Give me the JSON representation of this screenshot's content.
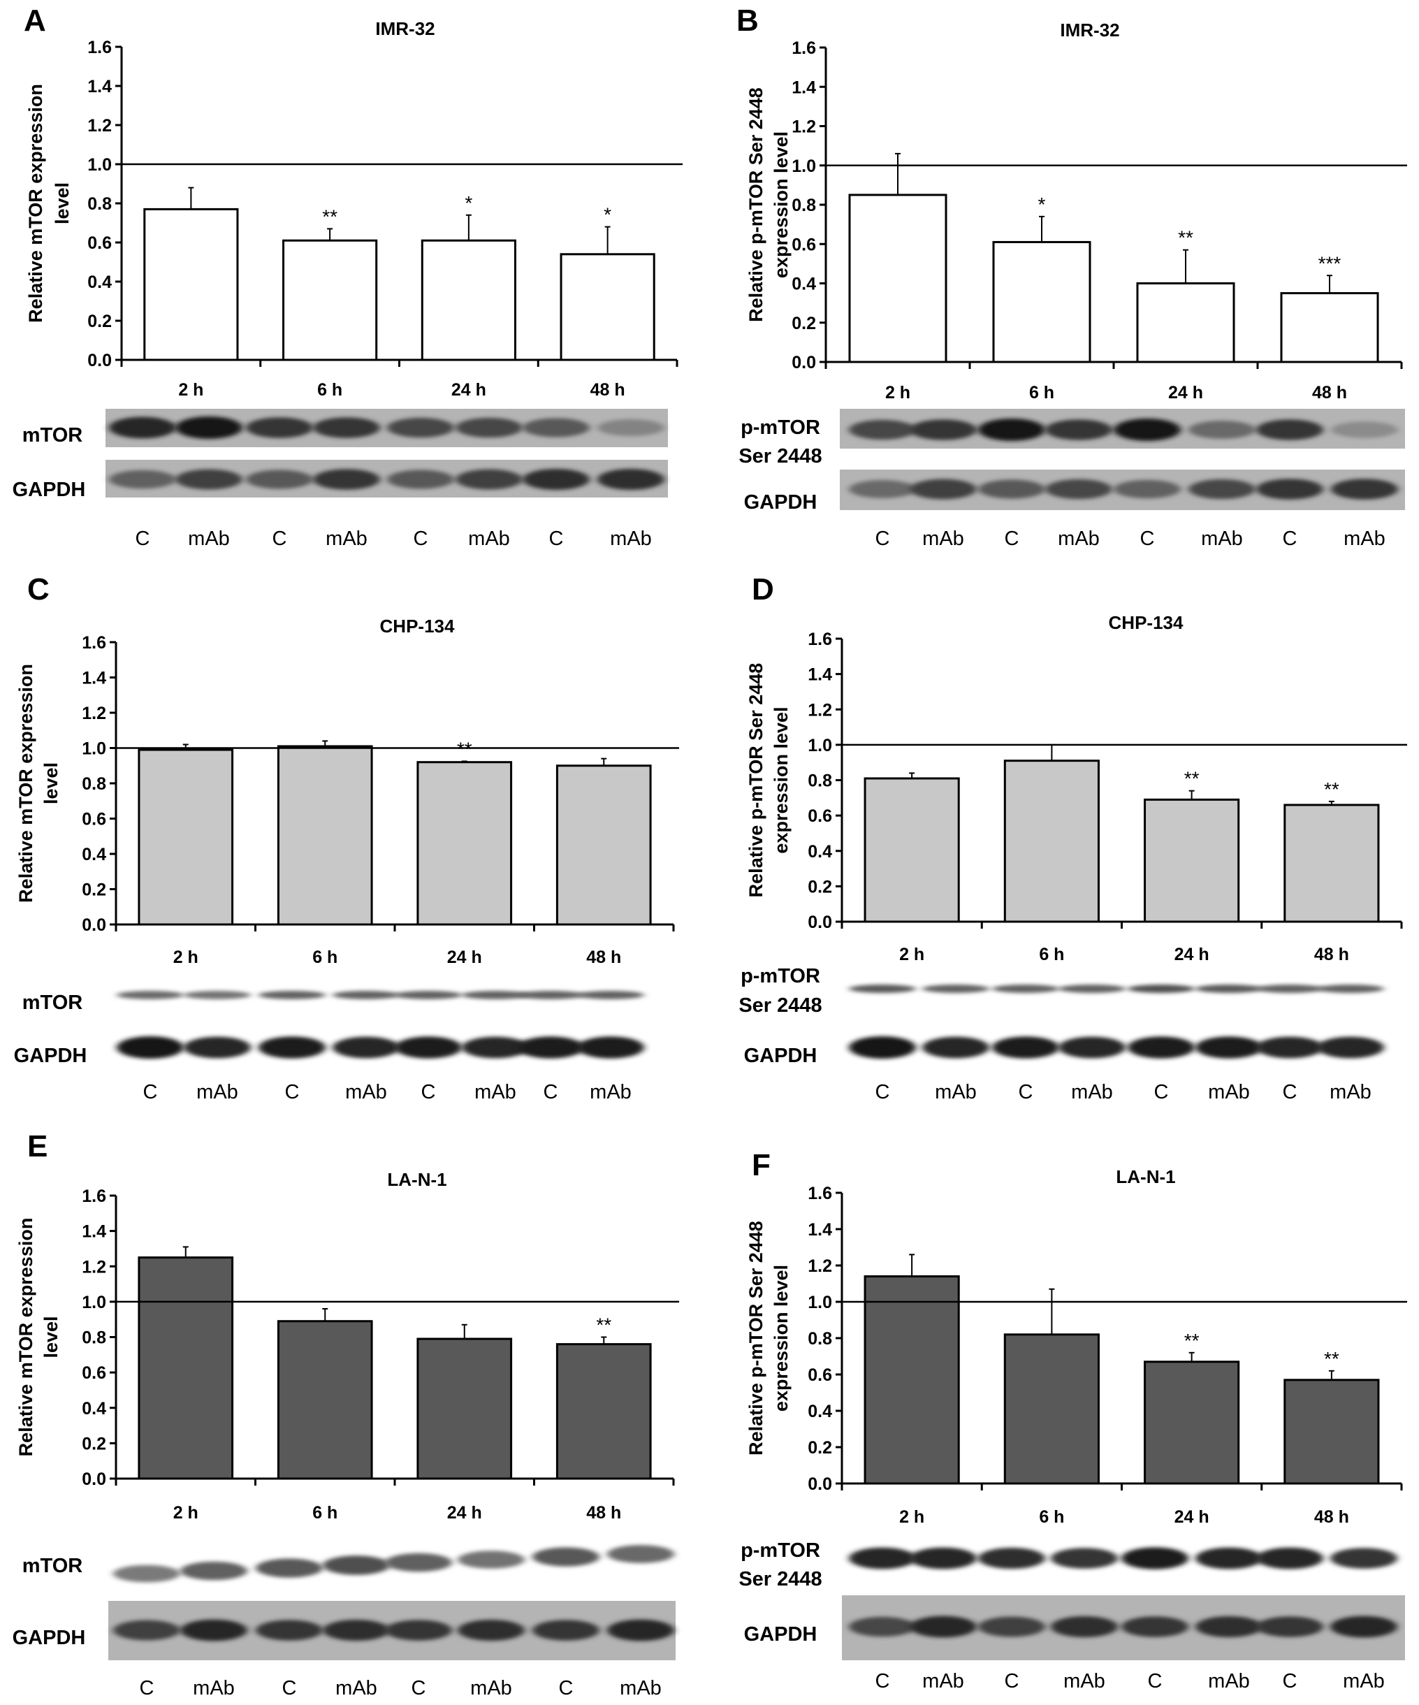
{
  "chart_data": [
    {
      "type": "bar",
      "panel": "A",
      "title": "IMR-32",
      "ylabel": [
        "Relative mTOR expression",
        "level"
      ],
      "categories": [
        "2 h",
        "6 h",
        "24 h",
        "48 h"
      ],
      "values": [
        0.77,
        0.61,
        0.61,
        0.54
      ],
      "errors": [
        0.11,
        0.06,
        0.13,
        0.14
      ],
      "significance": [
        "",
        "**",
        "*",
        "*"
      ],
      "ylim": [
        0,
        1.6
      ],
      "yticks": [
        "0.0",
        "0.2",
        "0.4",
        "0.6",
        "0.8",
        "1.0",
        "1.2",
        "1.4",
        "1.6"
      ],
      "reference_line": 1.0,
      "bar_color": "#ffffff",
      "blot": {
        "rows": [
          [
            "mTOR"
          ],
          [
            "GAPDH"
          ]
        ],
        "lanes": [
          "C",
          "mAb",
          "C",
          "mAb",
          "C",
          "mAb",
          "C",
          "mAb"
        ]
      }
    },
    {
      "type": "bar",
      "panel": "B",
      "title": "IMR-32",
      "ylabel": [
        "Relative p-mTOR Ser 2448",
        "expression level"
      ],
      "categories": [
        "2 h",
        "6 h",
        "24 h",
        "48 h"
      ],
      "values": [
        0.85,
        0.61,
        0.4,
        0.35
      ],
      "errors": [
        0.21,
        0.13,
        0.17,
        0.09
      ],
      "significance": [
        "",
        "*",
        "**",
        "***"
      ],
      "ylim": [
        0,
        1.6
      ],
      "yticks": [
        "0.0",
        "0.2",
        "0.4",
        "0.6",
        "0.8",
        "1.0",
        "1.2",
        "1.4",
        "1.6"
      ],
      "reference_line": 1.0,
      "bar_color": "#ffffff",
      "blot": {
        "rows": [
          [
            "p-mTOR",
            "Ser 2448"
          ],
          [
            "GAPDH"
          ]
        ],
        "lanes": [
          "C",
          "mAb",
          "C",
          "mAb",
          "C",
          "mAb",
          "C",
          "mAb"
        ]
      }
    },
    {
      "type": "bar",
      "panel": "C",
      "title": "CHP-134",
      "ylabel": [
        "Relative mTOR expression",
        "level"
      ],
      "categories": [
        "2 h",
        "6 h",
        "24 h",
        "48 h"
      ],
      "values": [
        0.99,
        1.01,
        0.92,
        0.9
      ],
      "errors": [
        0.03,
        0.03,
        0.005,
        0.04
      ],
      "significance": [
        "",
        "",
        "**",
        ""
      ],
      "ylim": [
        0,
        1.6
      ],
      "yticks": [
        "0.0",
        "0.2",
        "0.4",
        "0.6",
        "0.8",
        "1.0",
        "1.2",
        "1.4",
        "1.6"
      ],
      "reference_line": 1.0,
      "bar_color": "#c8c8c8",
      "blot": {
        "rows": [
          [
            "mTOR"
          ],
          [
            "GAPDH"
          ]
        ],
        "lanes": [
          "C",
          "mAb",
          "C",
          "mAb",
          "C",
          "mAb",
          "C",
          "mAb"
        ]
      }
    },
    {
      "type": "bar",
      "panel": "D",
      "title": "CHP-134",
      "ylabel": [
        "Relative p-mTOR Ser 2448",
        "expression level"
      ],
      "categories": [
        "2 h",
        "6 h",
        "24 h",
        "48 h"
      ],
      "values": [
        0.81,
        0.91,
        0.69,
        0.66
      ],
      "errors": [
        0.03,
        0.09,
        0.05,
        0.02
      ],
      "significance": [
        "",
        "",
        "**",
        "**"
      ],
      "ylim": [
        0,
        1.6
      ],
      "yticks": [
        "0.0",
        "0.2",
        "0.4",
        "0.6",
        "0.8",
        "1.0",
        "1.2",
        "1.4",
        "1.6"
      ],
      "reference_line": 1.0,
      "bar_color": "#c8c8c8",
      "blot": {
        "rows": [
          [
            "p-mTOR",
            "Ser 2448"
          ],
          [
            "GAPDH"
          ]
        ],
        "lanes": [
          "C",
          "mAb",
          "C",
          "mAb",
          "C",
          "mAb",
          "C",
          "mAb"
        ]
      }
    },
    {
      "type": "bar",
      "panel": "E",
      "title": "LA-N-1",
      "ylabel": [
        "Relative mTOR expression",
        "level"
      ],
      "categories": [
        "2 h",
        "6 h",
        "24 h",
        "48 h"
      ],
      "values": [
        1.25,
        0.89,
        0.79,
        0.76
      ],
      "errors": [
        0.06,
        0.07,
        0.08,
        0.04
      ],
      "significance": [
        "",
        "",
        "",
        "**"
      ],
      "ylim": [
        0,
        1.6
      ],
      "yticks": [
        "0.0",
        "0.2",
        "0.4",
        "0.6",
        "0.8",
        "1.0",
        "1.2",
        "1.4",
        "1.6"
      ],
      "reference_line": 1.0,
      "bar_color": "#595959",
      "blot": {
        "rows": [
          [
            "mTOR"
          ],
          [
            "GAPDH"
          ]
        ],
        "lanes": [
          "C",
          "mAb",
          "C",
          "mAb",
          "C",
          "mAb",
          "C",
          "mAb"
        ]
      }
    },
    {
      "type": "bar",
      "panel": "F",
      "title": "LA-N-1",
      "ylabel": [
        "Relative p-mTOR Ser 2448",
        "expression level"
      ],
      "categories": [
        "2 h",
        "6 h",
        "24 h",
        "48 h"
      ],
      "values": [
        1.14,
        0.82,
        0.67,
        0.57
      ],
      "errors": [
        0.12,
        0.25,
        0.05,
        0.05
      ],
      "significance": [
        "",
        "",
        "**",
        "**"
      ],
      "ylim": [
        0,
        1.6
      ],
      "yticks": [
        "0.0",
        "0.2",
        "0.4",
        "0.6",
        "0.8",
        "1.0",
        "1.2",
        "1.4",
        "1.6"
      ],
      "reference_line": 1.0,
      "bar_color": "#595959",
      "blot": {
        "rows": [
          [
            "p-mTOR",
            "Ser 2448"
          ],
          [
            "GAPDH"
          ]
        ],
        "lanes": [
          "C",
          "mAb",
          "C",
          "mAb",
          "C",
          "mAb",
          "C",
          "mAb"
        ]
      }
    }
  ]
}
